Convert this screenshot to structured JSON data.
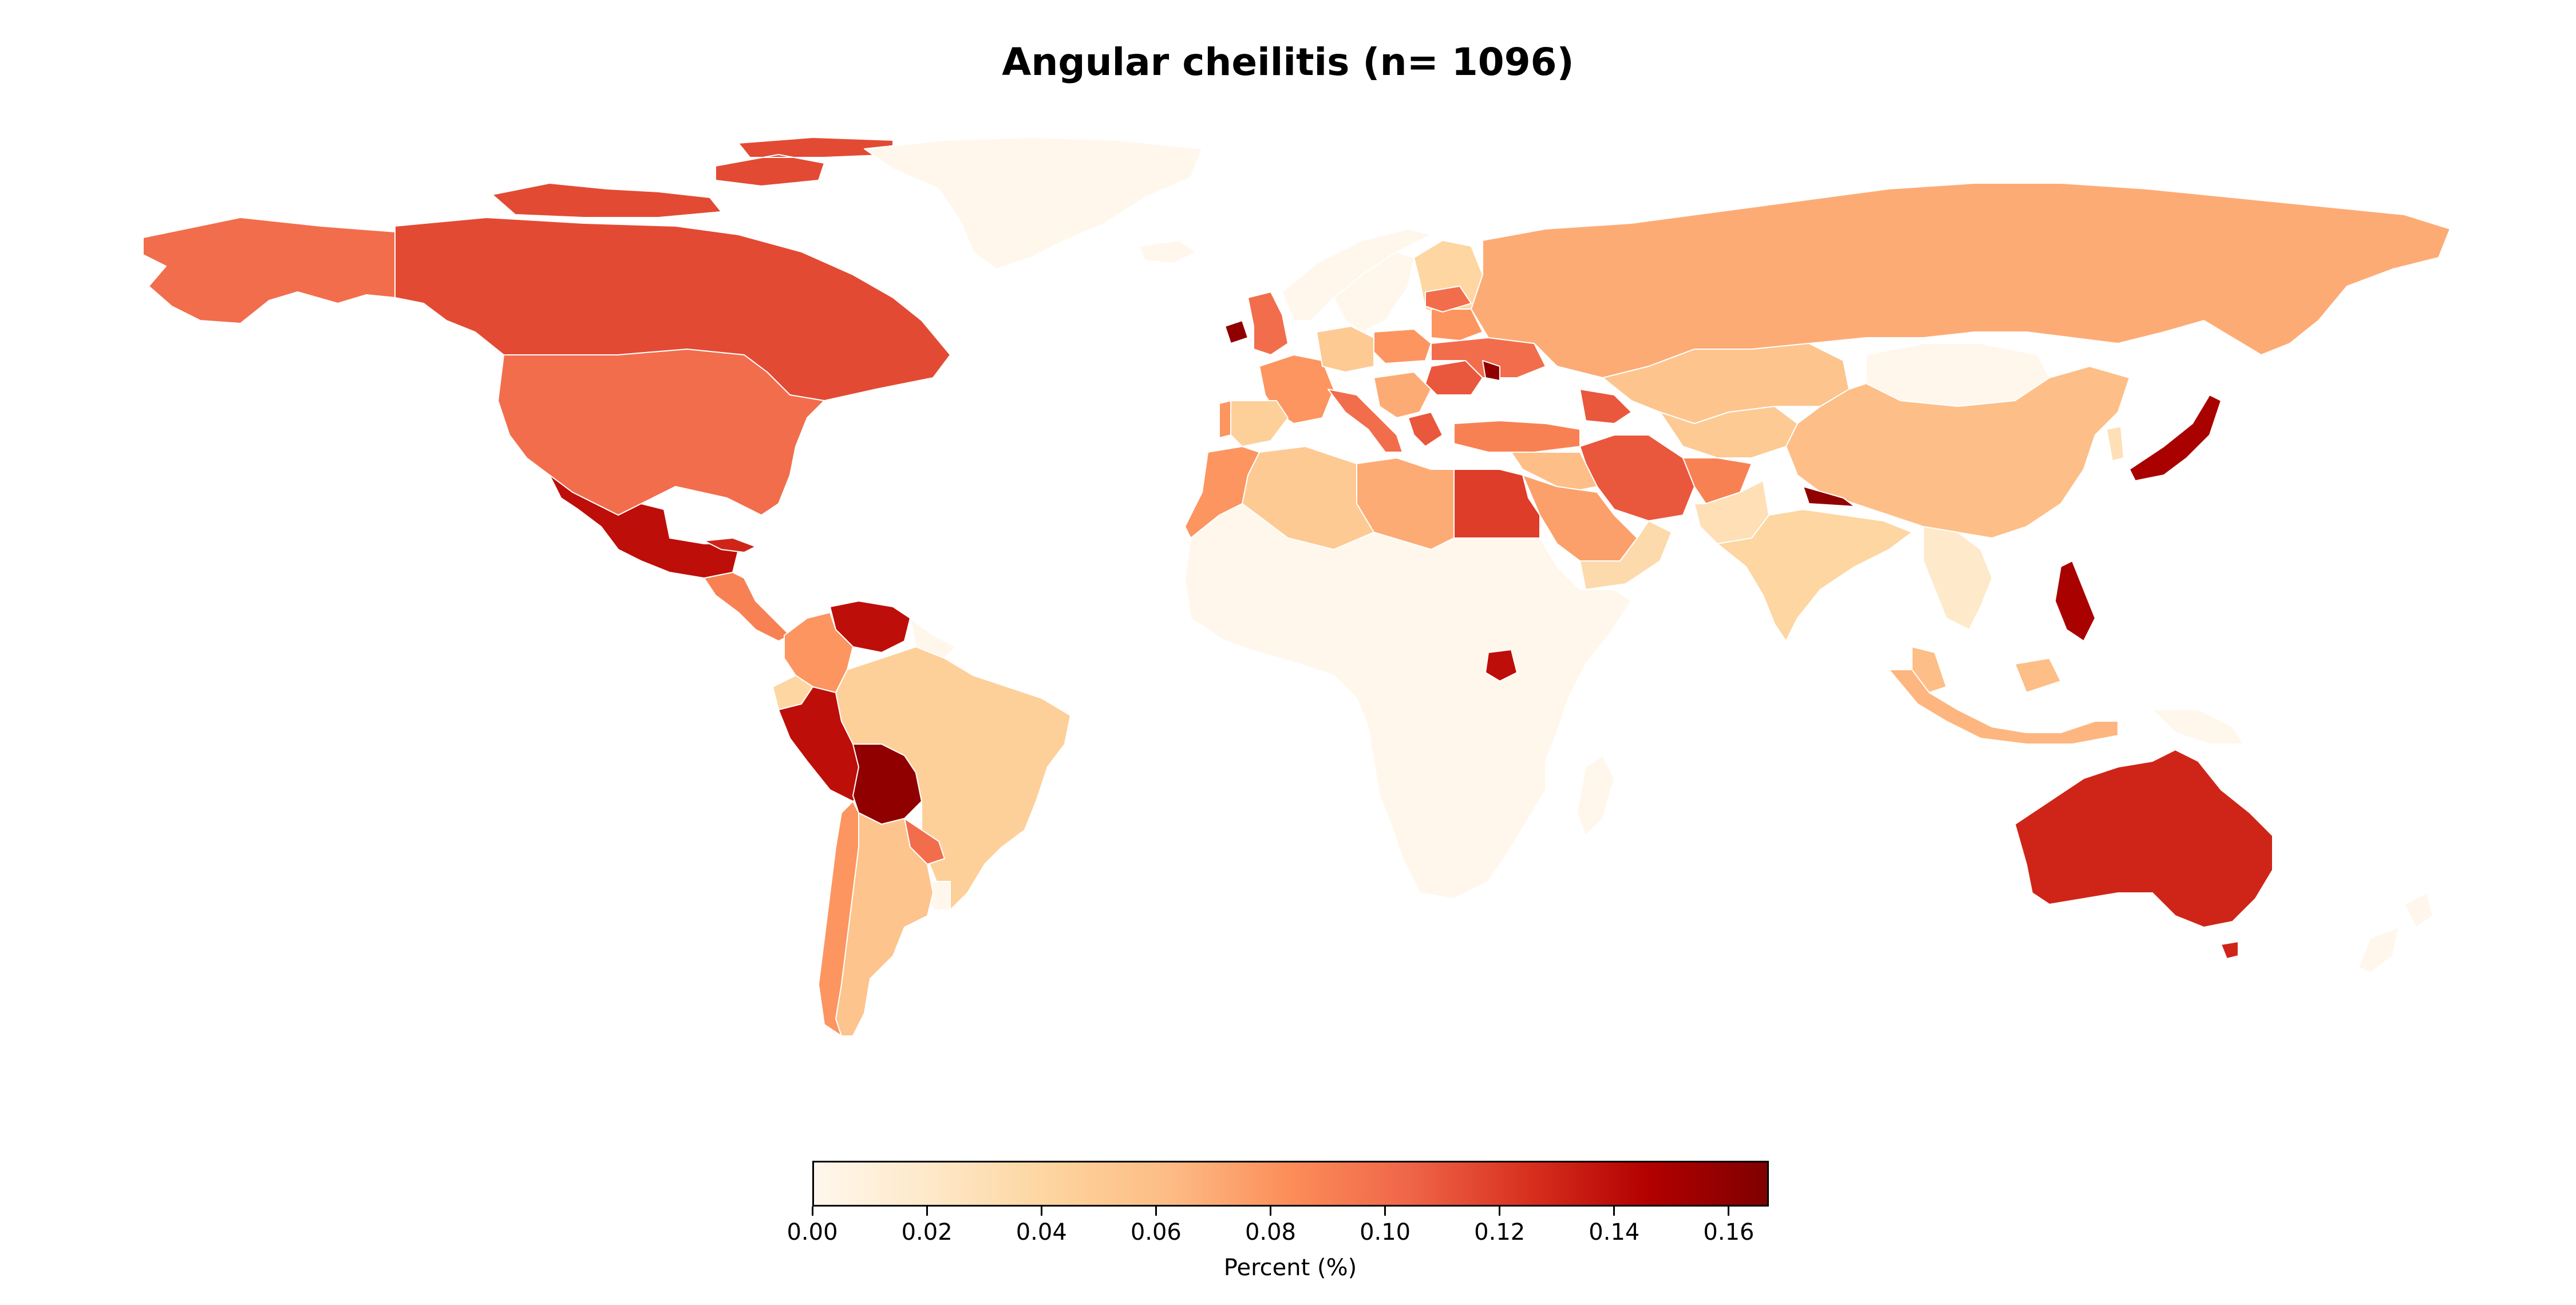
{
  "title": "Angular cheilitis (n= 1096)",
  "colorbar": {
    "label": "Percent (%)",
    "ticks": [
      "0.00",
      "0.02",
      "0.04",
      "0.06",
      "0.08",
      "0.10",
      "0.12",
      "0.14",
      "0.16"
    ],
    "min": 0.0,
    "max": 0.167,
    "colormap": "OrRd",
    "colors": [
      "#fff7ec",
      "#fee8c8",
      "#fdd49e",
      "#fdbb84",
      "#fc8d59",
      "#ef6548",
      "#d7301f",
      "#b30000",
      "#7f0000"
    ]
  },
  "chart_data": {
    "type": "choropleth",
    "title": "Angular cheilitis (n= 1096)",
    "value_label": "Percent (%)",
    "range": [
      0.0,
      0.167
    ],
    "regions": [
      {
        "name": "Alaska",
        "value": 0.1
      },
      {
        "name": "Canada",
        "value": 0.115
      },
      {
        "name": "United States",
        "value": 0.1
      },
      {
        "name": "Mexico",
        "value": 0.14
      },
      {
        "name": "Greenland",
        "value": 0.0
      },
      {
        "name": "Central America",
        "value": 0.09
      },
      {
        "name": "Cuba",
        "value": 0.13
      },
      {
        "name": "Venezuela",
        "value": 0.14
      },
      {
        "name": "Colombia",
        "value": 0.08
      },
      {
        "name": "Ecuador",
        "value": 0.04
      },
      {
        "name": "Peru",
        "value": 0.14
      },
      {
        "name": "Bolivia",
        "value": 0.16
      },
      {
        "name": "Brazil",
        "value": 0.045
      },
      {
        "name": "Guyana",
        "value": 0.0
      },
      {
        "name": "Paraguay",
        "value": 0.1
      },
      {
        "name": "Uruguay",
        "value": 0.0
      },
      {
        "name": "Chile",
        "value": 0.08
      },
      {
        "name": "Argentina",
        "value": 0.055
      },
      {
        "name": "Iceland",
        "value": 0.0
      },
      {
        "name": "Ireland",
        "value": 0.16
      },
      {
        "name": "United Kingdom",
        "value": 0.1
      },
      {
        "name": "Norway",
        "value": 0.0
      },
      {
        "name": "Sweden",
        "value": 0.0
      },
      {
        "name": "Finland",
        "value": 0.04
      },
      {
        "name": "France",
        "value": 0.08
      },
      {
        "name": "Spain",
        "value": 0.045
      },
      {
        "name": "Portugal",
        "value": 0.08
      },
      {
        "name": "Germany",
        "value": 0.05
      },
      {
        "name": "Poland",
        "value": 0.08
      },
      {
        "name": "Italy",
        "value": 0.1
      },
      {
        "name": "Balkans",
        "value": 0.07
      },
      {
        "name": "Greece",
        "value": 0.11
      },
      {
        "name": "Romania",
        "value": 0.11
      },
      {
        "name": "Ukraine",
        "value": 0.1
      },
      {
        "name": "Moldova",
        "value": 0.16
      },
      {
        "name": "Belarus",
        "value": 0.08
      },
      {
        "name": "Baltics",
        "value": 0.1
      },
      {
        "name": "Russia",
        "value": 0.07
      },
      {
        "name": "Kazakhstan",
        "value": 0.055
      },
      {
        "name": "Central Asia",
        "value": 0.05
      },
      {
        "name": "Mongolia",
        "value": 0.0
      },
      {
        "name": "China",
        "value": 0.06
      },
      {
        "name": "Korea",
        "value": 0.03
      },
      {
        "name": "Japan",
        "value": 0.15
      },
      {
        "name": "Turkey",
        "value": 0.09
      },
      {
        "name": "Caucasus",
        "value": 0.11
      },
      {
        "name": "Iran",
        "value": 0.11
      },
      {
        "name": "Afghanistan",
        "value": 0.09
      },
      {
        "name": "Pakistan",
        "value": 0.03
      },
      {
        "name": "Nepal",
        "value": 0.16
      },
      {
        "name": "India",
        "value": 0.04
      },
      {
        "name": "Iraq & Syria",
        "value": 0.06
      },
      {
        "name": "Saudi Arabia",
        "value": 0.075
      },
      {
        "name": "Yemen & Oman",
        "value": 0.035
      },
      {
        "name": "Egypt",
        "value": 0.12
      },
      {
        "name": "Libya",
        "value": 0.07
      },
      {
        "name": "Algeria",
        "value": 0.05
      },
      {
        "name": "Morocco",
        "value": 0.08
      },
      {
        "name": "Sub-Saharan Africa",
        "value": 0.0
      },
      {
        "name": "Madagascar",
        "value": 0.0
      },
      {
        "name": "Uganda",
        "value": 0.14
      },
      {
        "name": "Southeast Asia",
        "value": 0.02
      },
      {
        "name": "Philippines",
        "value": 0.15
      },
      {
        "name": "Malaysia",
        "value": 0.06
      },
      {
        "name": "Indonesia",
        "value": 0.065
      },
      {
        "name": "Papua New Guinea",
        "value": 0.0
      },
      {
        "name": "Australia",
        "value": 0.13
      },
      {
        "name": "Tasmania",
        "value": 0.13
      },
      {
        "name": "New Zealand",
        "value": 0.0
      }
    ]
  }
}
